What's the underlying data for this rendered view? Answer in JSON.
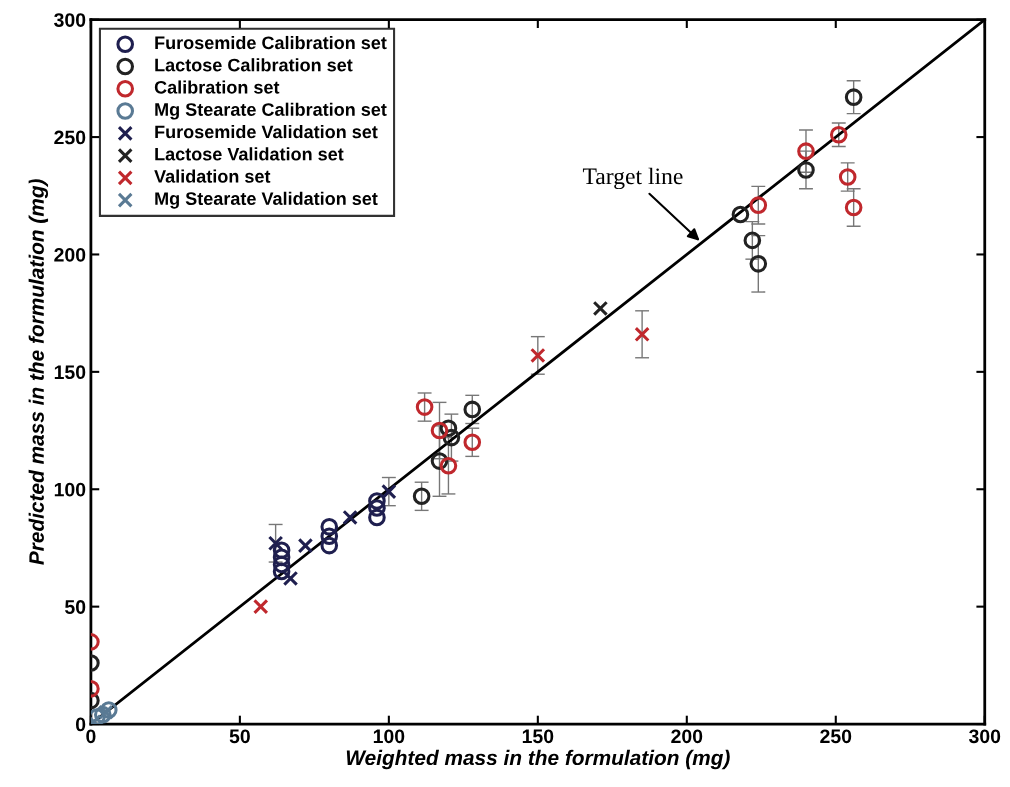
{
  "chart_data": {
    "type": "scatter",
    "xlabel": "Weighted mass in the formulation (mg)",
    "ylabel": "Predicted mass in the formulation (mg)",
    "xlim": [
      0,
      300
    ],
    "ylim": [
      0,
      300
    ],
    "xticks": [
      0,
      50,
      100,
      150,
      200,
      250,
      300
    ],
    "yticks": [
      0,
      50,
      100,
      150,
      200,
      250,
      300
    ],
    "grid": false,
    "legend": "top left",
    "annotations": [
      {
        "text": "Target line",
        "x": 205,
        "y": 205
      }
    ],
    "series": [
      {
        "name": "Furosemide Calibration set",
        "color": "#1f1f4f",
        "marker": "circle",
        "x": [
          64,
          64,
          64,
          64,
          80,
          80,
          80,
          96,
          96,
          96
        ],
        "values": [
          65,
          68,
          71,
          74,
          76,
          80,
          84,
          88,
          92,
          95
        ]
      },
      {
        "name": "Lactose Calibration set",
        "color": "#222222",
        "marker": "circle",
        "x": [
          0,
          0,
          111,
          117,
          120,
          121,
          128,
          218,
          222,
          224,
          240,
          256
        ],
        "values": [
          26,
          10,
          97,
          112,
          126,
          122,
          134,
          217,
          206,
          196,
          236,
          267
        ],
        "errors": [
          null,
          null,
          6,
          15,
          null,
          10,
          6,
          null,
          8,
          12,
          8,
          7
        ]
      },
      {
        "name": "Calibration set",
        "color": "#c0282d",
        "marker": "circle",
        "x": [
          0,
          0,
          112,
          117,
          120,
          128,
          224,
          240,
          251,
          254,
          256
        ],
        "values": [
          35,
          15,
          135,
          125,
          110,
          120,
          221,
          244,
          251,
          233,
          220
        ],
        "errors": [
          null,
          null,
          6,
          12,
          12,
          6,
          8,
          9,
          5,
          6,
          8
        ]
      },
      {
        "name": "Mg Stearate Calibration set",
        "color": "#5a7a94",
        "marker": "circle",
        "x": [
          2,
          4,
          6
        ],
        "values": [
          3,
          4,
          6
        ]
      },
      {
        "name": "Furosemide Validation set",
        "color": "#1f1f4f",
        "marker": "cross",
        "x": [
          62,
          67,
          72,
          87,
          100
        ],
        "values": [
          77,
          62,
          76,
          88,
          99
        ],
        "errors": [
          8,
          null,
          null,
          null,
          6
        ]
      },
      {
        "name": "Lactose Validation set",
        "color": "#222222",
        "marker": "cross",
        "x": [
          171
        ],
        "values": [
          177
        ]
      },
      {
        "name": "Validation set",
        "color": "#c0282d",
        "marker": "cross",
        "x": [
          57,
          150,
          185
        ],
        "values": [
          50,
          157,
          166
        ],
        "errors": [
          null,
          8,
          10
        ]
      },
      {
        "name": "Mg Stearate Validation set",
        "color": "#5a7a94",
        "marker": "cross",
        "x": [
          1,
          5
        ],
        "values": [
          1,
          5
        ]
      },
      {
        "type": "line",
        "color": "#000000",
        "x": [
          0,
          300
        ],
        "values": [
          0,
          300
        ]
      }
    ]
  }
}
